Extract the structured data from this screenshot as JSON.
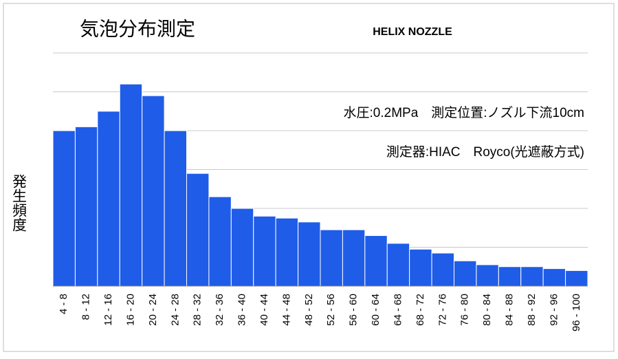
{
  "chart_data": {
    "type": "bar",
    "title": "気泡分布測定",
    "subtitle": "HELIX NOZZLE",
    "y_label": "発生頻度",
    "annotations": [
      "水圧:0.2MPa　測定位置:ノズル下流10cm",
      "測定器:HIAC　Royco(光遮蔽方式)"
    ],
    "categories": [
      "4 - 8",
      "8 - 12",
      "12 - 16",
      "16 - 20",
      "20 - 24",
      "24 - 28",
      "28 - 32",
      "32 - 36",
      "36 - 40",
      "40 - 44",
      "44 - 48",
      "48 - 52",
      "52 - 56",
      "56 - 60",
      "60 - 64",
      "64 - 68",
      "68 - 72",
      "72 - 76",
      "76 - 80",
      "80 - 84",
      "84 - 88",
      "88 - 92",
      "92 - 96",
      "96 - 100"
    ],
    "values": [
      4.0,
      4.1,
      4.5,
      5.2,
      4.9,
      4.0,
      2.9,
      2.3,
      2.0,
      1.8,
      1.75,
      1.65,
      1.45,
      1.45,
      1.3,
      1.1,
      0.95,
      0.85,
      0.65,
      0.55,
      0.5,
      0.5,
      0.45,
      0.4
    ],
    "color": "#1f5ce8",
    "ylim": [
      0,
      6
    ],
    "yticks": [
      0,
      1,
      2,
      3,
      4,
      5,
      6
    ],
    "grid": true
  }
}
